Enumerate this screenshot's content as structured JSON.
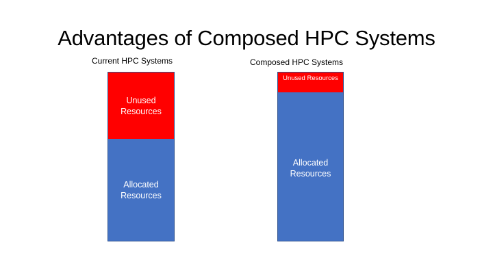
{
  "slide": {
    "title": "Advantages of Composed HPC Systems"
  },
  "colors": {
    "unused": "#ff0000",
    "allocated": "#4472c4",
    "border": "#2f528f"
  },
  "current": {
    "label": "Current HPC Systems",
    "unused_label_line1": "Unused",
    "unused_label_line2": "Resources",
    "allocated_label_line1": "Allocated",
    "allocated_label_line2": "Resources"
  },
  "composed": {
    "label": "Composed HPC Systems",
    "unused_label": "Unused Resources",
    "allocated_label_line1": "Allocated",
    "allocated_label_line2": "Resources"
  }
}
